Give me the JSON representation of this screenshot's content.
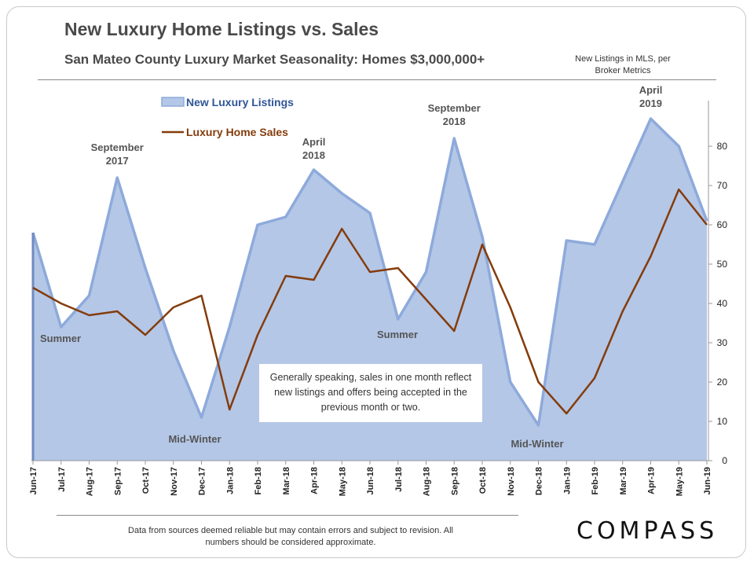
{
  "header": {
    "title": "New Luxury Home Listings vs. Sales",
    "subtitle": "San Mateo County Luxury Market Seasonality:  Homes $3,000,000+",
    "axis_note": "New Listings in MLS, per Broker Metrics"
  },
  "note_box": "Generally speaking, sales in one month reflect new listings and offers being accepted in the previous month or two.",
  "footer": {
    "disclaimer": "Data from sources deemed reliable but may contain errors and subject to revision. All numbers should be considered approximate.",
    "logo": "COMPASS"
  },
  "colors": {
    "area_fill": "#b4c7e7",
    "area_line": "#8eaadb",
    "sales_line": "#843c0c"
  },
  "chart_data": {
    "type": "area",
    "categories": [
      "Jun-17",
      "Jul-17",
      "Aug-17",
      "Sep-17",
      "Oct-17",
      "Nov-17",
      "Dec-17",
      "Jan-18",
      "Feb-18",
      "Mar-18",
      "Apr-18",
      "May-18",
      "Jun-18",
      "Jul-18",
      "Aug-18",
      "Sep-18",
      "Oct-18",
      "Nov-18",
      "Dec-18",
      "Jan-19",
      "Feb-19",
      "Mar-19",
      "Apr-19",
      "May-19",
      "Jun-19"
    ],
    "series": [
      {
        "name": "New Luxury Listings",
        "type": "area",
        "values": [
          58,
          34,
          42,
          72,
          49,
          28,
          11,
          34,
          60,
          62,
          74,
          68,
          63,
          36,
          48,
          82,
          57,
          20,
          9,
          56,
          55,
          71,
          87,
          80,
          61
        ]
      },
      {
        "name": "Luxury Home Sales",
        "type": "line",
        "values": [
          44,
          40,
          37,
          38,
          32,
          39,
          42,
          13,
          32,
          47,
          46,
          59,
          48,
          49,
          41,
          33,
          55,
          39,
          20,
          12,
          21,
          38,
          52,
          69,
          60
        ]
      }
    ],
    "ylim": [
      0,
      90
    ],
    "yticks": [
      0,
      10,
      20,
      30,
      40,
      50,
      60,
      70,
      80
    ],
    "y_axis_side": "right",
    "legend_placement": "top-left",
    "annotations": [
      {
        "text": [
          "September",
          "2017"
        ],
        "category": "Sep-17"
      },
      {
        "text": [
          "April",
          "2018"
        ],
        "category": "Apr-18"
      },
      {
        "text": [
          "September",
          "2018"
        ],
        "category": "Sep-18"
      },
      {
        "text": [
          "April",
          "2019"
        ],
        "category": "Apr-19"
      },
      {
        "text": [
          "Summer"
        ],
        "category": "Jul-17"
      },
      {
        "text": [
          "Mid-Winter"
        ],
        "category": "Dec-17"
      },
      {
        "text": [
          "Summer"
        ],
        "category": "Jul-18"
      },
      {
        "text": [
          "Mid-Winter"
        ],
        "category": "Dec-18"
      }
    ]
  }
}
